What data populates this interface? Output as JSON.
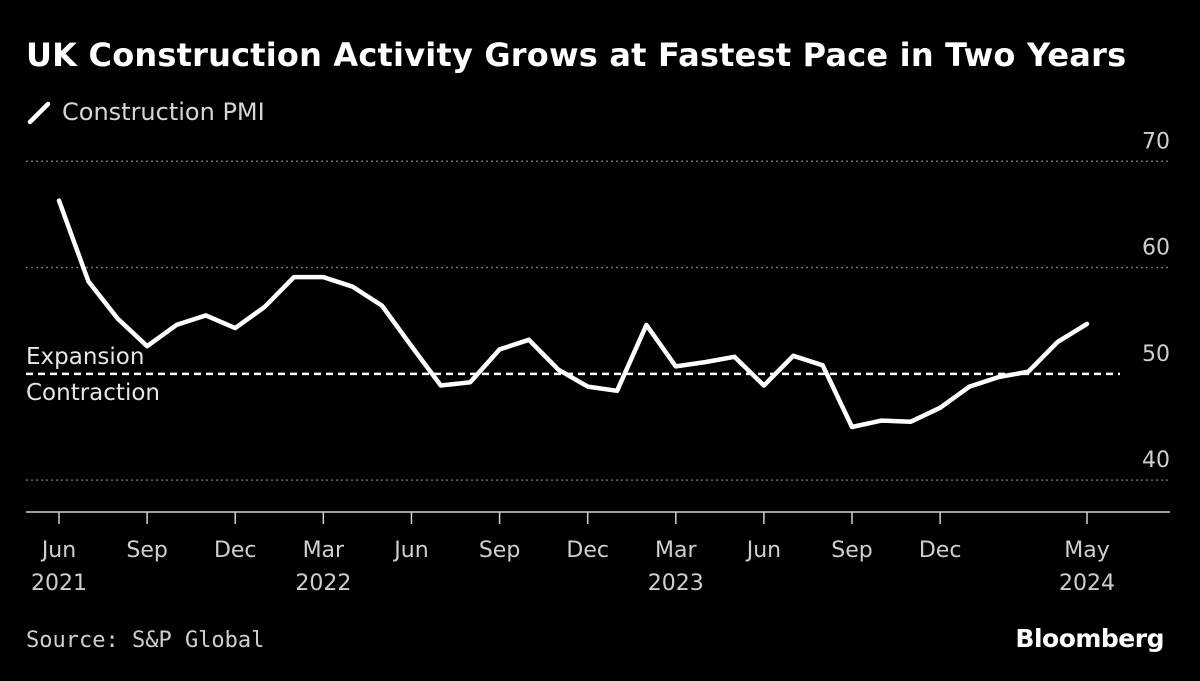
{
  "title": "UK Construction Activity Grows at Fastest Pace in Two Years",
  "source": "Source: S&P Global",
  "brand": "Bloomberg",
  "colors": {
    "background": "#000000",
    "line": "#ffffff",
    "grid": "#6e6e6e",
    "text": "#cfcfcf"
  },
  "chart_data": {
    "type": "line",
    "title": "UK Construction Activity Grows at Fastest Pace in Two Years",
    "legend": {
      "position": "top-left"
    },
    "series": [
      {
        "name": "Construction PMI",
        "x": [
          "2021-06",
          "2021-07",
          "2021-08",
          "2021-09",
          "2021-10",
          "2021-11",
          "2021-12",
          "2022-01",
          "2022-02",
          "2022-03",
          "2022-04",
          "2022-05",
          "2022-06",
          "2022-07",
          "2022-08",
          "2022-09",
          "2022-10",
          "2022-11",
          "2022-12",
          "2023-01",
          "2023-02",
          "2023-03",
          "2023-04",
          "2023-05",
          "2023-06",
          "2023-07",
          "2023-08",
          "2023-09",
          "2023-10",
          "2023-11",
          "2023-12",
          "2024-01",
          "2024-02",
          "2024-03",
          "2024-04",
          "2024-05"
        ],
        "values": [
          66.3,
          58.7,
          55.2,
          52.6,
          54.6,
          55.5,
          54.3,
          56.3,
          59.1,
          59.1,
          58.2,
          56.4,
          52.6,
          48.9,
          49.2,
          52.3,
          53.2,
          50.4,
          48.8,
          48.4,
          54.6,
          50.7,
          51.1,
          51.6,
          48.9,
          51.7,
          50.8,
          45.0,
          45.6,
          45.5,
          46.8,
          48.8,
          49.7,
          50.2,
          53.0,
          54.7
        ]
      }
    ],
    "reference_line": {
      "value": 50,
      "label_above": "Expansion",
      "label_below": "Contraction"
    },
    "ylim": [
      37,
      72
    ],
    "yticks": [
      40,
      50,
      60,
      70
    ],
    "grid": "horizontal dotted",
    "xticks": [
      {
        "x": "2021-06",
        "label": "Jun",
        "year": "2021"
      },
      {
        "x": "2021-09",
        "label": "Sep",
        "year": ""
      },
      {
        "x": "2021-12",
        "label": "Dec",
        "year": ""
      },
      {
        "x": "2022-03",
        "label": "Mar",
        "year": "2022"
      },
      {
        "x": "2022-06",
        "label": "Jun",
        "year": ""
      },
      {
        "x": "2022-09",
        "label": "Sep",
        "year": ""
      },
      {
        "x": "2022-12",
        "label": "Dec",
        "year": ""
      },
      {
        "x": "2023-03",
        "label": "Mar",
        "year": "2023"
      },
      {
        "x": "2023-06",
        "label": "Jun",
        "year": ""
      },
      {
        "x": "2023-09",
        "label": "Sep",
        "year": ""
      },
      {
        "x": "2023-12",
        "label": "Dec",
        "year": ""
      },
      {
        "x": "2024-05",
        "label": "May",
        "year": "2024"
      }
    ]
  }
}
